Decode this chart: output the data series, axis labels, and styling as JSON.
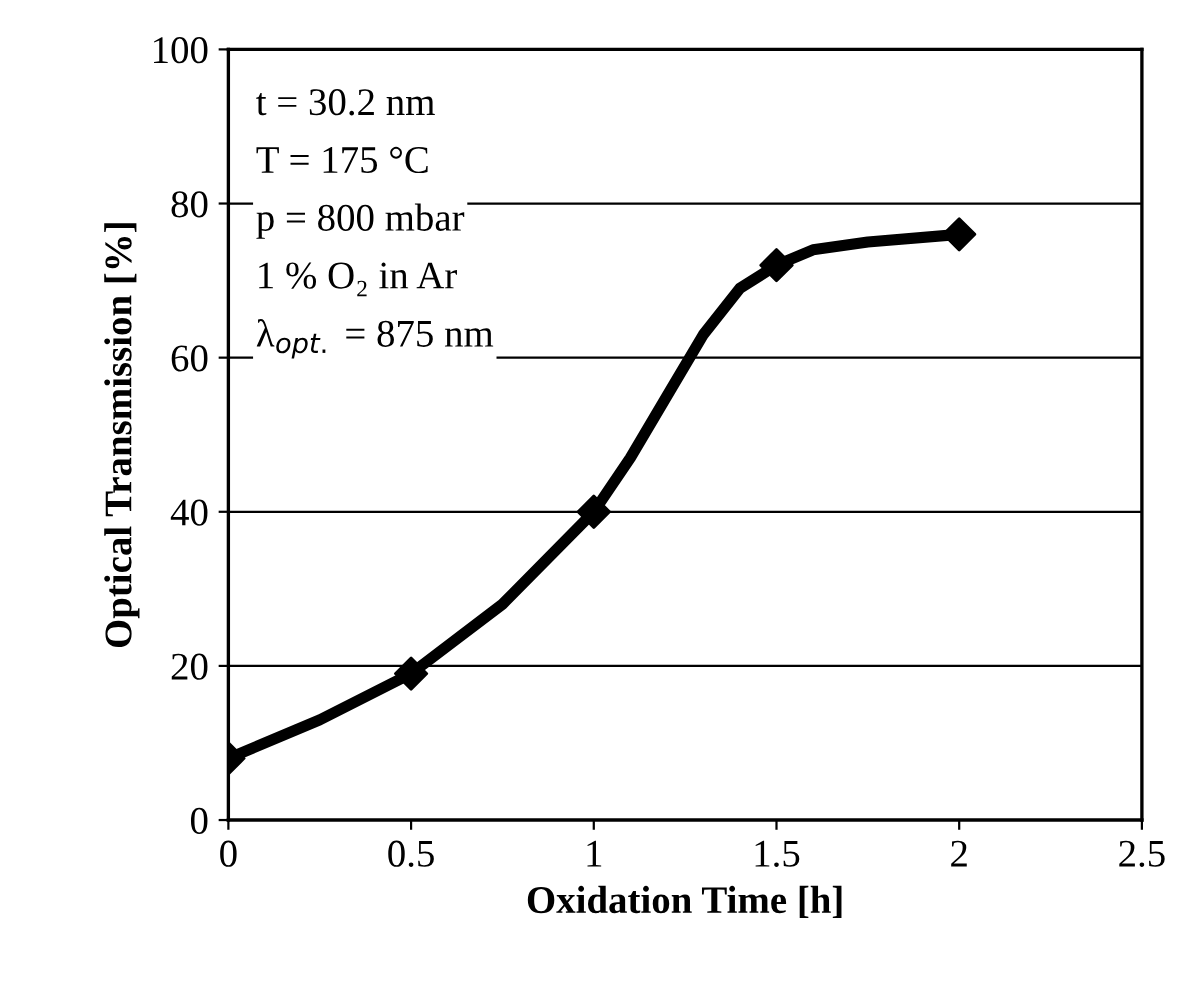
{
  "chart_data": {
    "type": "line",
    "xlabel": "Oxidation Time [h]",
    "ylabel": "Optical Transmission [%]",
    "series": [
      {
        "color": "#000000",
        "marker": "none",
        "x": [
          0,
          0.25,
          0.5,
          0.75,
          1,
          1.1,
          1.2,
          1.3,
          1.4,
          1.5,
          1.6,
          1.75,
          2
        ],
        "values": [
          8,
          13,
          19,
          28,
          40,
          47,
          55,
          63,
          69,
          72,
          74,
          75,
          76
        ]
      },
      {
        "type": "scatter",
        "color": "#000000",
        "marker": "diamond",
        "x": [
          0,
          0.5,
          1,
          1.5,
          2
        ],
        "values": [
          8,
          19,
          40,
          72,
          76
        ]
      }
    ],
    "xlim": [
      0,
      2.5
    ],
    "xticks": [
      0,
      0.5,
      1,
      1.5,
      2,
      2.5
    ],
    "ylim": [
      0,
      100
    ],
    "yticks": [
      0,
      20,
      40,
      60,
      80,
      100
    ],
    "grid": "y",
    "line_style": "solid",
    "legend": false,
    "annotations": [
      "t = 30.2 nm",
      "T = 175 °C",
      "p = 800 mbar",
      "1 % O₂ in Ar",
      "λ$_{opt.}$ = 875 nm"
    ]
  }
}
